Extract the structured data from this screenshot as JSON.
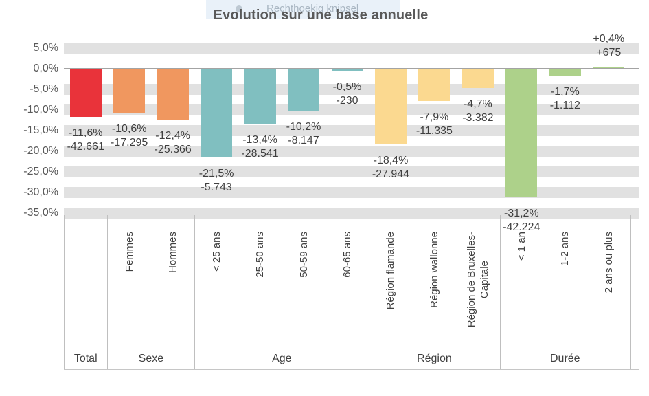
{
  "snip_overlay": {
    "label": "Rechthoekig knipsel"
  },
  "title": "Evolution sur une base annuelle",
  "y_axis": {
    "ticks": [
      {
        "label": "5,0%",
        "value": 5
      },
      {
        "label": "0,0%",
        "value": 0
      },
      {
        "label": "-5,0%",
        "value": -5
      },
      {
        "label": "-10,0%",
        "value": -10
      },
      {
        "label": "-15,0%",
        "value": -15
      },
      {
        "label": "-20,0%",
        "value": -20
      },
      {
        "label": "-25,0%",
        "value": -25
      },
      {
        "label": "-30,0%",
        "value": -30
      },
      {
        "label": "-35,0%",
        "value": -35
      }
    ]
  },
  "chart_data": {
    "type": "bar",
    "title": "Evolution sur une base annuelle",
    "xlabel": "",
    "ylabel": "",
    "ylim": [
      -35,
      5
    ],
    "y_tick_step": 5,
    "grid": "horizontal-bands",
    "legend": "none",
    "groups": [
      {
        "label": "Total",
        "color": "#e9333a",
        "bars": [
          {
            "category": "",
            "pct": -11.6,
            "pct_label": "-11,6%",
            "abs_label": "-42.661"
          }
        ]
      },
      {
        "label": "Sexe",
        "color": "#f0975f",
        "bars": [
          {
            "category": "Femmes",
            "pct": -10.6,
            "pct_label": "-10,6%",
            "abs_label": "-17.295"
          },
          {
            "category": "Hommes",
            "pct": -12.4,
            "pct_label": "-12,4%",
            "abs_label": "-25.366"
          }
        ]
      },
      {
        "label": "Age",
        "color": "#80bfc0",
        "bars": [
          {
            "category": "< 25 ans",
            "pct": -21.5,
            "pct_label": "-21,5%",
            "abs_label": "-5.743"
          },
          {
            "category": "25-50 ans",
            "pct": -13.4,
            "pct_label": "-13,4%",
            "abs_label": "-28.541"
          },
          {
            "category": "50-59 ans",
            "pct": -10.2,
            "pct_label": "-10,2%",
            "abs_label": "-8.147"
          },
          {
            "category": "60-65 ans",
            "pct": -0.5,
            "pct_label": "-0,5%",
            "abs_label": "-230"
          }
        ]
      },
      {
        "label": "Région",
        "color": "#fbd990",
        "bars": [
          {
            "category": "Région flamande",
            "pct": -18.4,
            "pct_label": "-18,4%",
            "abs_label": "-27.944"
          },
          {
            "category": "Région wallonne",
            "pct": -7.9,
            "pct_label": "-7,9%",
            "abs_label": "-11.335"
          },
          {
            "category": "Région de Bruxelles-Capitale",
            "category_lines": [
              "Région de Bruxelles-",
              "Capitale"
            ],
            "pct": -4.7,
            "pct_label": "-4,7%",
            "abs_label": "-3.382"
          }
        ]
      },
      {
        "label": "Durée",
        "color": "#add18a",
        "bars": [
          {
            "category": "< 1 an",
            "pct": -31.2,
            "pct_label": "-31,2%",
            "abs_label": "-42.224"
          },
          {
            "category": "1-2 ans",
            "pct": -1.7,
            "pct_label": "-1,7%",
            "abs_label": "-1.112"
          },
          {
            "category": "2 ans ou plus",
            "pct": 0.4,
            "pct_label": "+0,4%",
            "abs_label": "+675"
          }
        ]
      }
    ]
  }
}
